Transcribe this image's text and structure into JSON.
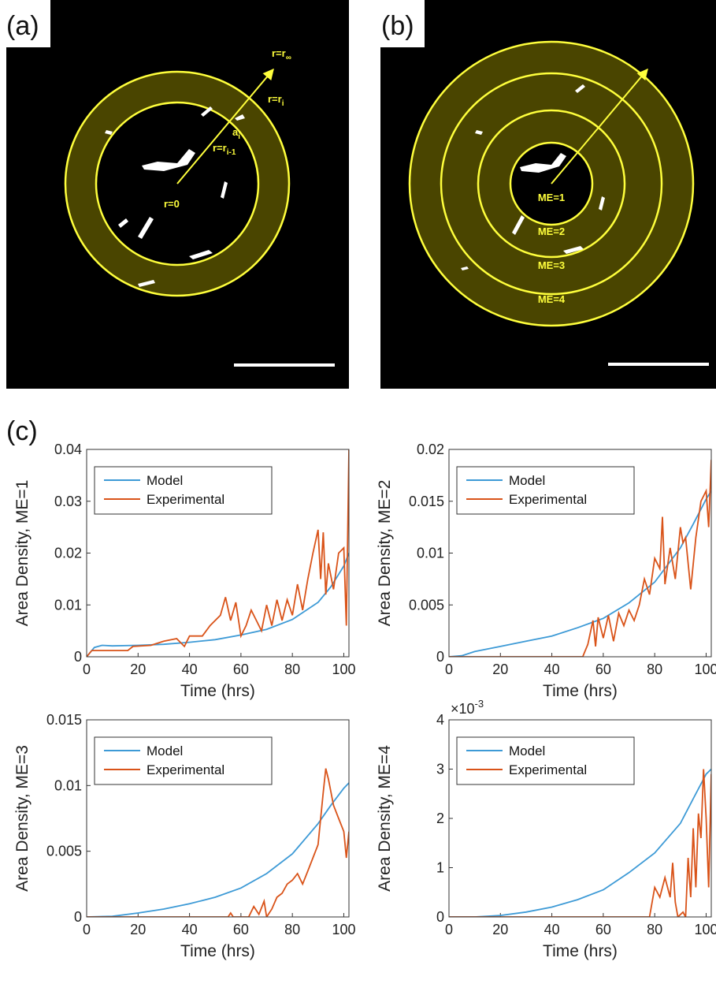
{
  "panel_labels": [
    "(a)",
    "(b)",
    "(c)"
  ],
  "image_a": {
    "annotations": [
      {
        "text": "r=r",
        "sub": "∞"
      },
      {
        "text": "r=r",
        "sub": "i"
      },
      {
        "text": "a",
        "sub": "i"
      },
      {
        "text": "r=r",
        "sub": "i-1"
      },
      {
        "text": "r=0"
      }
    ]
  },
  "image_b": {
    "annotations": [
      "ME=1",
      "ME=2",
      "ME=3",
      "ME=4"
    ]
  },
  "chart_data": [
    {
      "type": "line",
      "xlabel": "Time (hrs)",
      "ylabel": "Area Density, ME=1",
      "xlim": [
        0,
        102
      ],
      "ylim": [
        0,
        0.04
      ],
      "xticks": [
        0,
        20,
        40,
        60,
        80,
        100
      ],
      "yticks": [
        0,
        0.01,
        0.02,
        0.03,
        0.04
      ],
      "legend": "upper left",
      "series": [
        {
          "name": "Model",
          "color": "#3d9ad6",
          "x": [
            0,
            3,
            6,
            10,
            20,
            30,
            40,
            50,
            60,
            70,
            80,
            90,
            95,
            100,
            102
          ],
          "values": [
            0,
            0.0018,
            0.0022,
            0.0021,
            0.0022,
            0.0024,
            0.0028,
            0.0033,
            0.0042,
            0.0053,
            0.0072,
            0.0105,
            0.0135,
            0.0175,
            0.02
          ]
        },
        {
          "name": "Experimental",
          "color": "#d95319",
          "x": [
            0,
            2,
            16,
            18,
            25,
            30,
            35,
            38,
            40,
            45,
            48,
            52,
            54,
            56,
            58,
            60,
            62,
            64,
            66,
            68,
            70,
            72,
            74,
            76,
            78,
            80,
            82,
            84,
            86,
            88,
            90,
            91,
            92,
            93,
            94,
            96,
            98,
            100,
            101,
            102
          ],
          "values": [
            0,
            0.0012,
            0.0012,
            0.002,
            0.0022,
            0.003,
            0.0035,
            0.002,
            0.004,
            0.004,
            0.006,
            0.008,
            0.0115,
            0.007,
            0.0105,
            0.004,
            0.006,
            0.009,
            0.007,
            0.005,
            0.01,
            0.006,
            0.011,
            0.007,
            0.011,
            0.008,
            0.014,
            0.009,
            0.015,
            0.02,
            0.0245,
            0.015,
            0.024,
            0.012,
            0.018,
            0.013,
            0.02,
            0.021,
            0.006,
            0.04
          ]
        }
      ]
    },
    {
      "type": "line",
      "xlabel": "Time (hrs)",
      "ylabel": "Area Density, ME=2",
      "xlim": [
        0,
        102
      ],
      "ylim": [
        0,
        0.02
      ],
      "xticks": [
        0,
        20,
        40,
        60,
        80,
        100
      ],
      "yticks": [
        0,
        0.005,
        0.01,
        0.015,
        0.02
      ],
      "legend": "upper left",
      "series": [
        {
          "name": "Model",
          "color": "#3d9ad6",
          "x": [
            0,
            5,
            10,
            20,
            30,
            40,
            50,
            60,
            70,
            80,
            90,
            95,
            100,
            102
          ],
          "values": [
            0,
            0.0001,
            0.0005,
            0.001,
            0.0015,
            0.002,
            0.0028,
            0.0037,
            0.0052,
            0.0072,
            0.0105,
            0.0128,
            0.0152,
            0.016
          ]
        },
        {
          "name": "Experimental",
          "color": "#d95319",
          "x": [
            0,
            52,
            54,
            56,
            57,
            58,
            60,
            62,
            64,
            66,
            68,
            70,
            72,
            74,
            76,
            78,
            80,
            82,
            83,
            84,
            86,
            88,
            90,
            91,
            92,
            94,
            96,
            98,
            100,
            101,
            102
          ],
          "values": [
            0,
            0,
            0.0012,
            0.0035,
            0.001,
            0.0038,
            0.0018,
            0.004,
            0.0015,
            0.0042,
            0.003,
            0.0045,
            0.0035,
            0.005,
            0.0075,
            0.006,
            0.0095,
            0.0085,
            0.0135,
            0.007,
            0.0105,
            0.0075,
            0.0125,
            0.011,
            0.0115,
            0.0065,
            0.0115,
            0.015,
            0.016,
            0.0125,
            0.019
          ]
        }
      ]
    },
    {
      "type": "line",
      "xlabel": "Time (hrs)",
      "ylabel": "Area Density, ME=3",
      "xlim": [
        0,
        102
      ],
      "ylim": [
        0,
        0.015
      ],
      "xticks": [
        0,
        20,
        40,
        60,
        80,
        100
      ],
      "yticks": [
        0,
        0.005,
        0.01,
        0.015
      ],
      "legend": "upper left",
      "series": [
        {
          "name": "Model",
          "color": "#3d9ad6",
          "x": [
            0,
            10,
            20,
            30,
            40,
            50,
            60,
            70,
            80,
            90,
            95,
            100,
            102
          ],
          "values": [
            0,
            5e-05,
            0.0003,
            0.0006,
            0.001,
            0.0015,
            0.0022,
            0.0033,
            0.0048,
            0.0071,
            0.0085,
            0.0098,
            0.0102
          ]
        },
        {
          "name": "Experimental",
          "color": "#d95319",
          "x": [
            0,
            55,
            56,
            57,
            63,
            65,
            67,
            69,
            70,
            72,
            74,
            76,
            78,
            80,
            82,
            84,
            86,
            88,
            90,
            92,
            93,
            94,
            96,
            98,
            100,
            101,
            102
          ],
          "values": [
            0,
            0,
            0.0003,
            0,
            0,
            0.0008,
            0.0002,
            0.0012,
            0,
            0.0006,
            0.0015,
            0.0018,
            0.0025,
            0.0028,
            0.0033,
            0.0025,
            0.0035,
            0.0045,
            0.0055,
            0.0095,
            0.0113,
            0.0105,
            0.0085,
            0.0075,
            0.0065,
            0.0045,
            0.0065
          ]
        }
      ]
    },
    {
      "type": "line",
      "xlabel": "Time (hrs)",
      "ylabel": "Area Density, ME=4",
      "xlim": [
        0,
        102
      ],
      "ylim": [
        0,
        0.004
      ],
      "xticks": [
        0,
        20,
        40,
        60,
        80,
        100
      ],
      "yticks": [
        0,
        {
          "value": 0.001,
          "label": "1"
        },
        {
          "value": 0.002,
          "label": "2"
        },
        {
          "value": 0.003,
          "label": "3"
        },
        {
          "value": 0.004,
          "label": "4"
        }
      ],
      "axis_multiplier": {
        "base": "×10",
        "exponent": "-3"
      },
      "legend": "upper left",
      "series": [
        {
          "name": "Model",
          "color": "#3d9ad6",
          "x": [
            0,
            10,
            20,
            30,
            40,
            50,
            60,
            70,
            80,
            90,
            95,
            100,
            102
          ],
          "values": [
            0,
            0,
            3e-05,
            0.0001,
            0.0002,
            0.00035,
            0.00055,
            0.0009,
            0.0013,
            0.0019,
            0.0024,
            0.0029,
            0.003
          ]
        },
        {
          "name": "Experimental",
          "color": "#d95319",
          "x": [
            0,
            78,
            79,
            80,
            82,
            84,
            86,
            87,
            88,
            89,
            91,
            92,
            93,
            94,
            95,
            96,
            97,
            98,
            99,
            100,
            101,
            102
          ],
          "values": [
            0,
            0,
            0.0003,
            0.0006,
            0.0004,
            0.0008,
            0.0004,
            0.0011,
            0.0003,
            0,
            0.0001,
            0,
            0.0012,
            0.0004,
            0.0018,
            0.0006,
            0.0021,
            0.0016,
            0.003,
            0.002,
            0.0006,
            0.0029
          ]
        }
      ]
    }
  ]
}
